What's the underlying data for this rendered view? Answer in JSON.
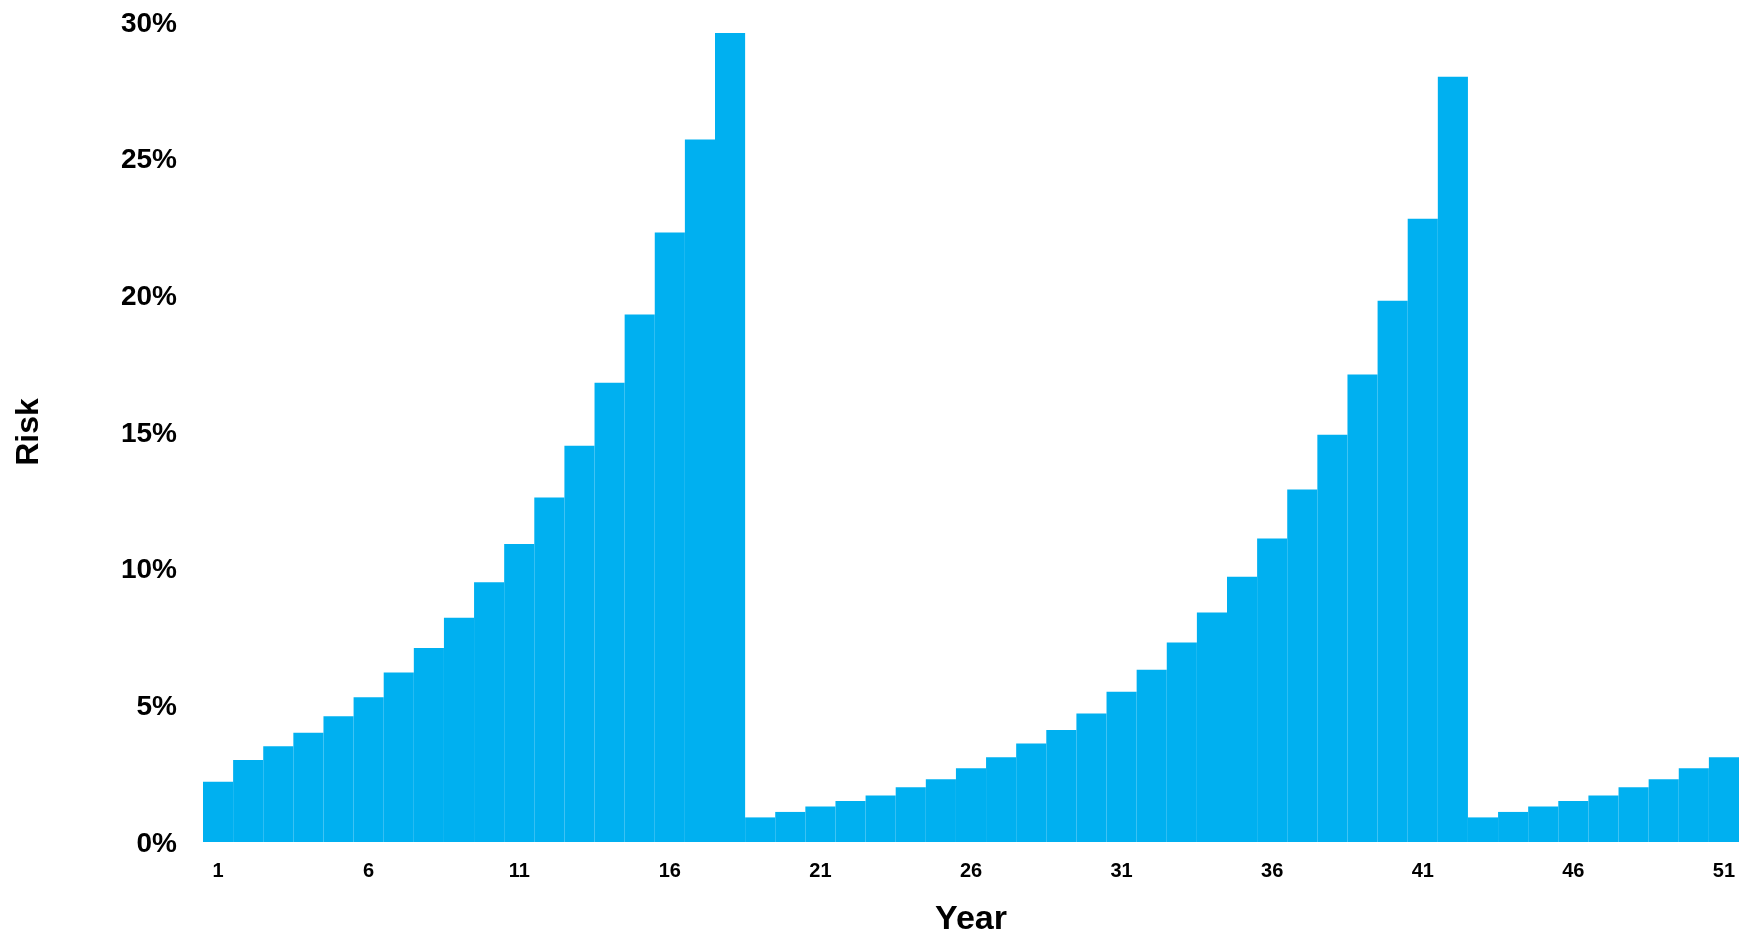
{
  "chart_data": {
    "type": "bar",
    "xlabel": "Year",
    "ylabel": "Risk",
    "color": "#00b0f0",
    "grid": false,
    "categories": [
      "1",
      null,
      null,
      null,
      null,
      "6",
      null,
      null,
      null,
      null,
      "11",
      null,
      null,
      null,
      null,
      "16",
      null,
      null,
      null,
      null,
      "21",
      null,
      null,
      null,
      null,
      "26",
      null,
      null,
      null,
      null,
      "31",
      null,
      null,
      null,
      null,
      "36",
      null,
      null,
      null,
      null,
      "41",
      null,
      null,
      null,
      null,
      "46",
      null,
      null,
      null,
      null,
      "51"
    ],
    "values": [
      2.2,
      3.0,
      3.5,
      4.0,
      4.6,
      5.3,
      6.2,
      7.1,
      8.2,
      9.5,
      10.9,
      12.6,
      14.5,
      16.8,
      19.3,
      22.3,
      25.7,
      29.6,
      0.9,
      1.1,
      1.3,
      1.5,
      1.7,
      2.0,
      2.3,
      2.7,
      3.1,
      3.6,
      4.1,
      4.7,
      5.5,
      6.3,
      7.3,
      8.4,
      9.7,
      11.1,
      12.9,
      14.9,
      17.1,
      19.8,
      22.8,
      28.0,
      0.9,
      1.1,
      1.3,
      1.5,
      1.7,
      2.0,
      2.3,
      2.7,
      3.1
    ],
    "ylim": [
      0,
      30
    ],
    "yticks": [
      {
        "value": 0,
        "label": "0%"
      },
      {
        "value": 5,
        "label": "5%"
      },
      {
        "value": 10,
        "label": "10%"
      },
      {
        "value": 15,
        "label": "15%"
      },
      {
        "value": 20,
        "label": "20%"
      },
      {
        "value": 25,
        "label": "25%"
      },
      {
        "value": 30,
        "label": "30%"
      }
    ]
  }
}
